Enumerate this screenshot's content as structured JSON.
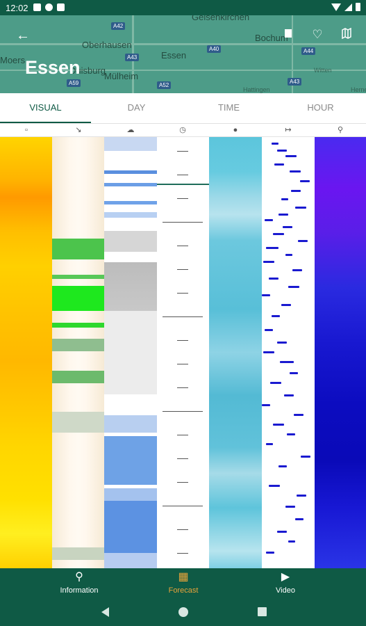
{
  "status_bar": {
    "time": "12:02"
  },
  "header": {
    "city": "Essen",
    "map_labels": [
      "Gelsenkirchen",
      "Oberhausen",
      "Essen",
      "Bochum",
      "Moers",
      "Mülheim",
      "Duisburg",
      "Witten",
      "Hattingen",
      "Herne"
    ],
    "map_roads": [
      "A42",
      "A40",
      "A43",
      "A44",
      "A59",
      "A52",
      "A43"
    ],
    "icons": [
      "back-arrow-icon",
      "bookmark-icon",
      "heart-icon",
      "map-icon"
    ]
  },
  "tabs": [
    {
      "label": "VISUAL",
      "active": true
    },
    {
      "label": "DAY",
      "active": false
    },
    {
      "label": "TIME",
      "active": false
    },
    {
      "label": "HOUR",
      "active": false
    }
  ],
  "columns": [
    "thermometer-icon",
    "wind-icon",
    "cloud-icon",
    "clock-icon",
    "humidity-drop-icon",
    "precipitation-icon",
    "pressure-pin-icon"
  ],
  "bottom_nav": [
    {
      "label": "Information",
      "icon": "location-pin-icon",
      "active": false
    },
    {
      "label": "Forecast",
      "icon": "calendar-icon",
      "active": true
    },
    {
      "label": "Video",
      "icon": "video-icon",
      "active": false
    }
  ],
  "colors": {
    "primary": "#0f5a45",
    "accent": "#e8a33a"
  }
}
